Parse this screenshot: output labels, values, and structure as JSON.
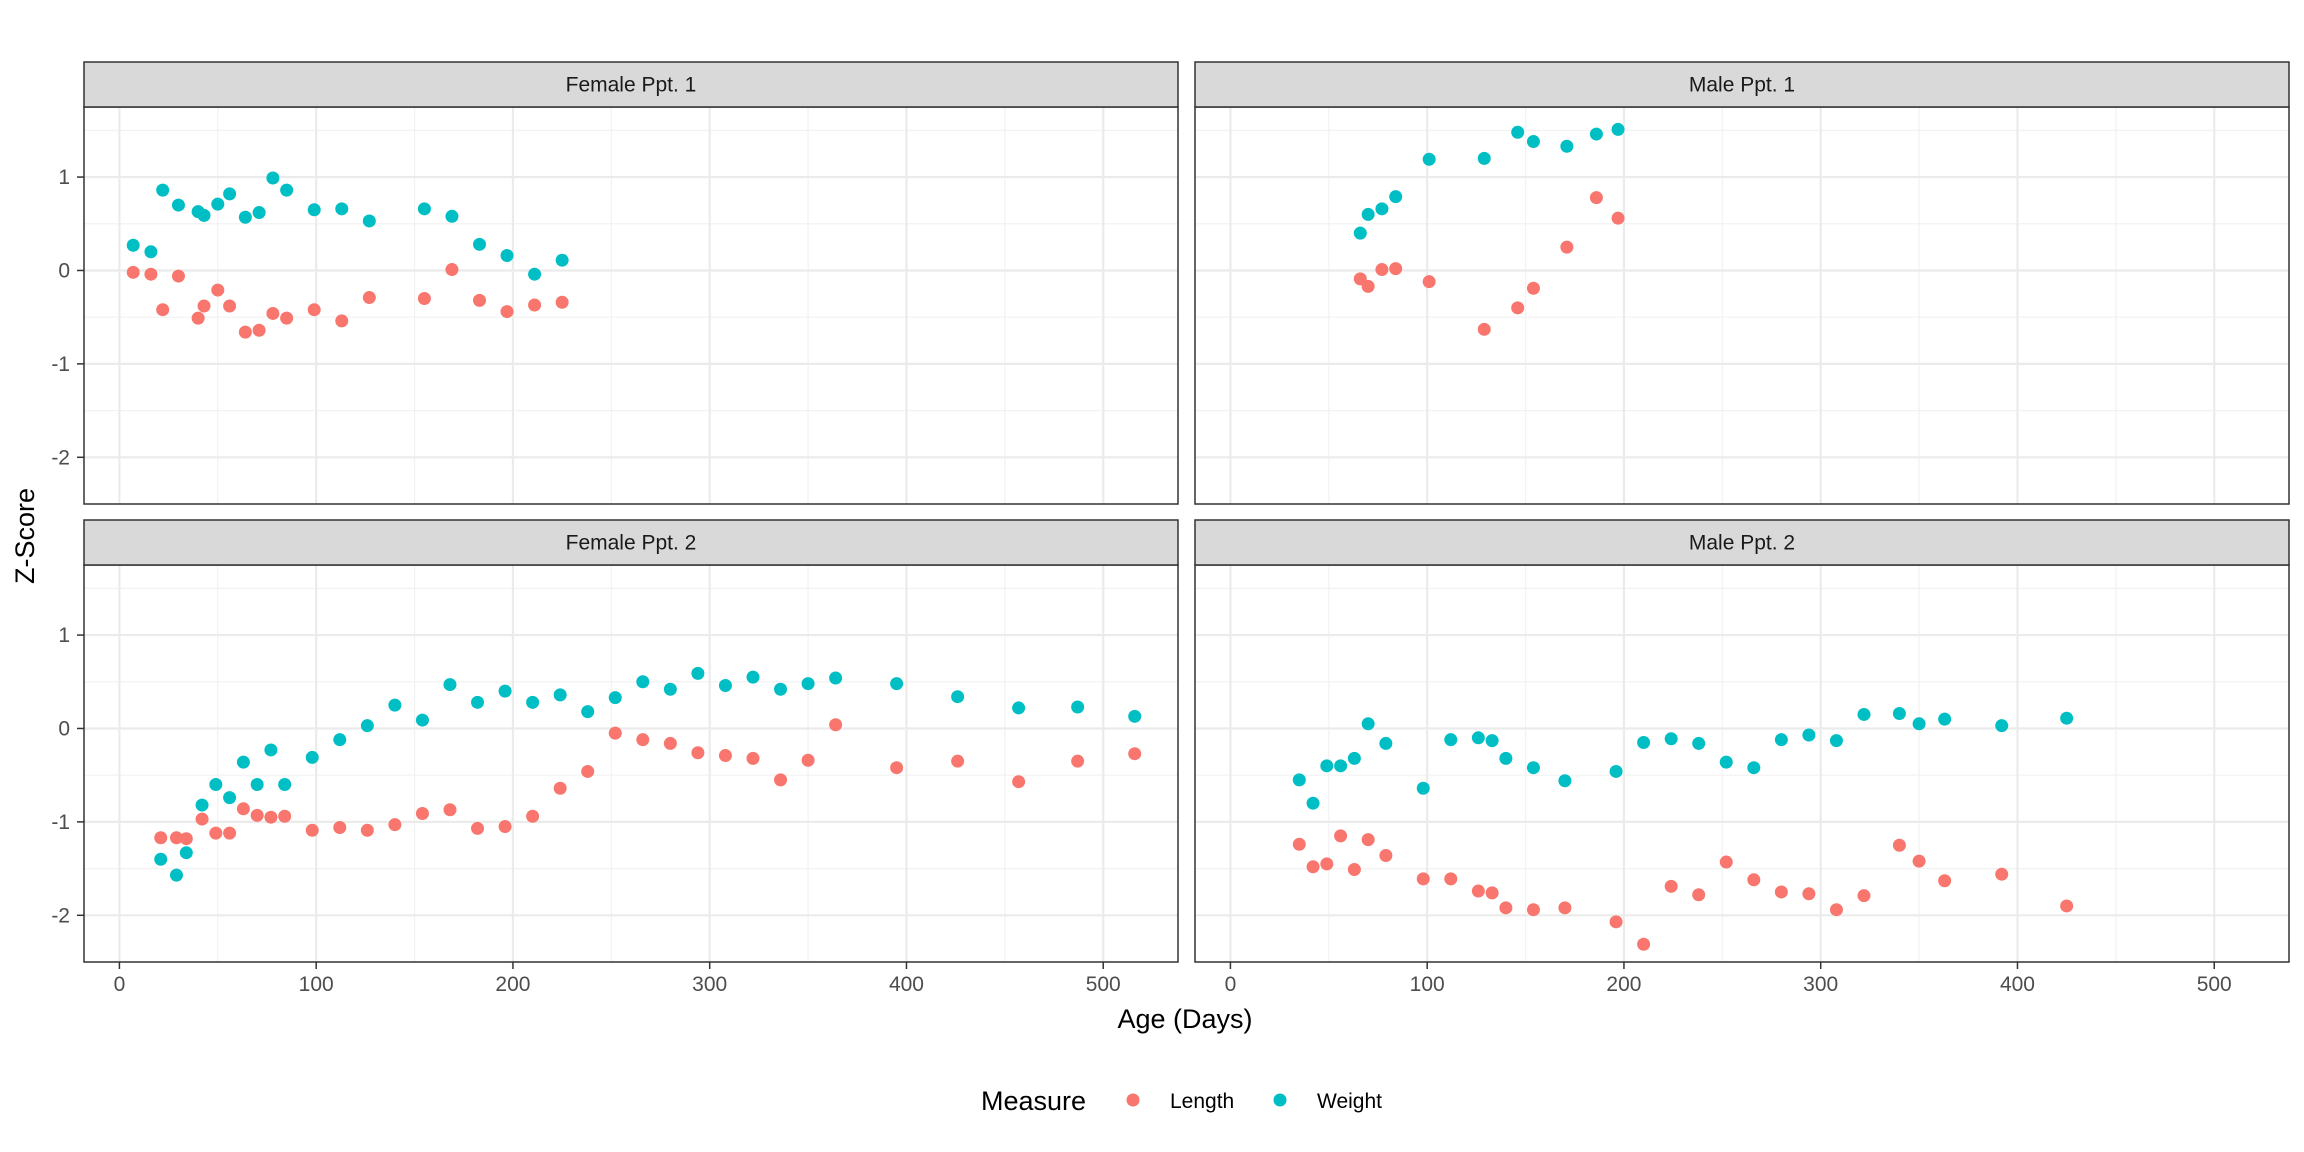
{
  "chart_data": {
    "type": "scatter",
    "xlabel": "Age (Days)",
    "ylabel": "Z-Score",
    "xlim": [
      -18,
      538
    ],
    "ylim": [
      -2.5,
      1.75
    ],
    "x_ticks": [
      0,
      100,
      200,
      300,
      400,
      500
    ],
    "y_ticks": [
      -2,
      -1,
      0,
      1
    ],
    "grid": true,
    "legend": {
      "title": "Measure",
      "position": "bottom",
      "entries": [
        {
          "name": "Length",
          "color": "#F8766D"
        },
        {
          "name": "Weight",
          "color": "#00BFC4"
        }
      ]
    },
    "panels": [
      {
        "title": "Female Ppt. 1",
        "series": [
          {
            "name": "Length",
            "points": [
              [
                7,
                -0.02
              ],
              [
                16,
                -0.04
              ],
              [
                22,
                -0.42
              ],
              [
                30,
                -0.06
              ],
              [
                40,
                -0.51
              ],
              [
                43,
                -0.38
              ],
              [
                50,
                -0.21
              ],
              [
                56,
                -0.38
              ],
              [
                64,
                -0.66
              ],
              [
                71,
                -0.64
              ],
              [
                78,
                -0.46
              ],
              [
                85,
                -0.51
              ],
              [
                99,
                -0.42
              ],
              [
                113,
                -0.54
              ],
              [
                127,
                -0.29
              ],
              [
                155,
                -0.3
              ],
              [
                169,
                0.01
              ],
              [
                183,
                -0.32
              ],
              [
                197,
                -0.44
              ],
              [
                211,
                -0.37
              ],
              [
                225,
                -0.34
              ]
            ]
          },
          {
            "name": "Weight",
            "points": [
              [
                7,
                0.27
              ],
              [
                16,
                0.2
              ],
              [
                22,
                0.86
              ],
              [
                30,
                0.7
              ],
              [
                40,
                0.63
              ],
              [
                43,
                0.59
              ],
              [
                50,
                0.71
              ],
              [
                56,
                0.82
              ],
              [
                64,
                0.57
              ],
              [
                71,
                0.62
              ],
              [
                78,
                0.99
              ],
              [
                85,
                0.86
              ],
              [
                99,
                0.65
              ],
              [
                113,
                0.66
              ],
              [
                127,
                0.53
              ],
              [
                155,
                0.66
              ],
              [
                169,
                0.58
              ],
              [
                183,
                0.28
              ],
              [
                197,
                0.16
              ],
              [
                211,
                -0.04
              ],
              [
                225,
                0.11
              ]
            ]
          }
        ]
      },
      {
        "title": "Male Ppt. 1",
        "series": [
          {
            "name": "Length",
            "points": [
              [
                66,
                -0.09
              ],
              [
                70,
                -0.17
              ],
              [
                77,
                0.01
              ],
              [
                84,
                0.02
              ],
              [
                101,
                -0.12
              ],
              [
                129,
                -0.63
              ],
              [
                146,
                -0.4
              ],
              [
                154,
                -0.19
              ],
              [
                171,
                0.25
              ],
              [
                186,
                0.78
              ],
              [
                197,
                0.56
              ]
            ]
          },
          {
            "name": "Weight",
            "points": [
              [
                66,
                0.4
              ],
              [
                70,
                0.6
              ],
              [
                77,
                0.66
              ],
              [
                84,
                0.79
              ],
              [
                101,
                1.19
              ],
              [
                129,
                1.2
              ],
              [
                146,
                1.48
              ],
              [
                154,
                1.38
              ],
              [
                171,
                1.33
              ],
              [
                186,
                1.46
              ],
              [
                197,
                1.51
              ]
            ]
          }
        ]
      },
      {
        "title": "Female Ppt. 2",
        "series": [
          {
            "name": "Length",
            "points": [
              [
                21,
                -1.17
              ],
              [
                29,
                -1.17
              ],
              [
                34,
                -1.18
              ],
              [
                42,
                -0.97
              ],
              [
                49,
                -1.12
              ],
              [
                56,
                -1.12
              ],
              [
                63,
                -0.86
              ],
              [
                70,
                -0.93
              ],
              [
                77,
                -0.95
              ],
              [
                84,
                -0.94
              ],
              [
                98,
                -1.09
              ],
              [
                112,
                -1.06
              ],
              [
                126,
                -1.09
              ],
              [
                140,
                -1.03
              ],
              [
                154,
                -0.91
              ],
              [
                168,
                -0.87
              ],
              [
                182,
                -1.07
              ],
              [
                196,
                -1.05
              ],
              [
                210,
                -0.94
              ],
              [
                224,
                -0.64
              ],
              [
                238,
                -0.46
              ],
              [
                252,
                -0.05
              ],
              [
                266,
                -0.12
              ],
              [
                280,
                -0.16
              ],
              [
                294,
                -0.26
              ],
              [
                308,
                -0.29
              ],
              [
                322,
                -0.32
              ],
              [
                336,
                -0.55
              ],
              [
                350,
                -0.34
              ],
              [
                364,
                0.04
              ],
              [
                395,
                -0.42
              ],
              [
                426,
                -0.35
              ],
              [
                457,
                -0.57
              ],
              [
                487,
                -0.35
              ],
              [
                516,
                -0.27
              ]
            ]
          },
          {
            "name": "Weight",
            "points": [
              [
                21,
                -1.4
              ],
              [
                29,
                -1.57
              ],
              [
                34,
                -1.33
              ],
              [
                42,
                -0.82
              ],
              [
                49,
                -0.6
              ],
              [
                56,
                -0.74
              ],
              [
                63,
                -0.36
              ],
              [
                70,
                -0.6
              ],
              [
                77,
                -0.23
              ],
              [
                84,
                -0.6
              ],
              [
                98,
                -0.31
              ],
              [
                112,
                -0.12
              ],
              [
                126,
                0.03
              ],
              [
                140,
                0.25
              ],
              [
                154,
                0.09
              ],
              [
                168,
                0.47
              ],
              [
                182,
                0.28
              ],
              [
                196,
                0.4
              ],
              [
                210,
                0.28
              ],
              [
                224,
                0.36
              ],
              [
                238,
                0.18
              ],
              [
                252,
                0.33
              ],
              [
                266,
                0.5
              ],
              [
                280,
                0.42
              ],
              [
                294,
                0.59
              ],
              [
                308,
                0.46
              ],
              [
                322,
                0.55
              ],
              [
                336,
                0.42
              ],
              [
                350,
                0.48
              ],
              [
                364,
                0.54
              ],
              [
                395,
                0.48
              ],
              [
                426,
                0.34
              ],
              [
                457,
                0.22
              ],
              [
                487,
                0.23
              ],
              [
                516,
                0.13
              ]
            ]
          }
        ]
      },
      {
        "title": "Male Ppt. 2",
        "series": [
          {
            "name": "Length",
            "points": [
              [
                35,
                -1.24
              ],
              [
                42,
                -1.48
              ],
              [
                49,
                -1.45
              ],
              [
                56,
                -1.15
              ],
              [
                63,
                -1.51
              ],
              [
                70,
                -1.19
              ],
              [
                79,
                -1.36
              ],
              [
                98,
                -1.61
              ],
              [
                112,
                -1.61
              ],
              [
                126,
                -1.74
              ],
              [
                133,
                -1.76
              ],
              [
                140,
                -1.92
              ],
              [
                154,
                -1.94
              ],
              [
                170,
                -1.92
              ],
              [
                196,
                -2.07
              ],
              [
                210,
                -2.31
              ],
              [
                224,
                -1.69
              ],
              [
                238,
                -1.78
              ],
              [
                252,
                -1.43
              ],
              [
                266,
                -1.62
              ],
              [
                280,
                -1.75
              ],
              [
                294,
                -1.77
              ],
              [
                308,
                -1.94
              ],
              [
                322,
                -1.79
              ],
              [
                340,
                -1.25
              ],
              [
                350,
                -1.42
              ],
              [
                363,
                -1.63
              ],
              [
                392,
                -1.56
              ],
              [
                425,
                -1.9
              ]
            ]
          },
          {
            "name": "Weight",
            "points": [
              [
                35,
                -0.55
              ],
              [
                42,
                -0.8
              ],
              [
                49,
                -0.4
              ],
              [
                56,
                -0.4
              ],
              [
                63,
                -0.32
              ],
              [
                70,
                0.05
              ],
              [
                79,
                -0.16
              ],
              [
                98,
                -0.64
              ],
              [
                112,
                -0.12
              ],
              [
                126,
                -0.1
              ],
              [
                133,
                -0.13
              ],
              [
                140,
                -0.32
              ],
              [
                154,
                -0.42
              ],
              [
                170,
                -0.56
              ],
              [
                196,
                -0.46
              ],
              [
                210,
                -0.15
              ],
              [
                224,
                -0.11
              ],
              [
                238,
                -0.16
              ],
              [
                252,
                -0.36
              ],
              [
                266,
                -0.42
              ],
              [
                280,
                -0.12
              ],
              [
                294,
                -0.07
              ],
              [
                308,
                -0.13
              ],
              [
                322,
                0.15
              ],
              [
                340,
                0.16
              ],
              [
                350,
                0.05
              ],
              [
                363,
                0.1
              ],
              [
                392,
                0.03
              ],
              [
                425,
                0.11
              ]
            ]
          }
        ]
      }
    ]
  }
}
